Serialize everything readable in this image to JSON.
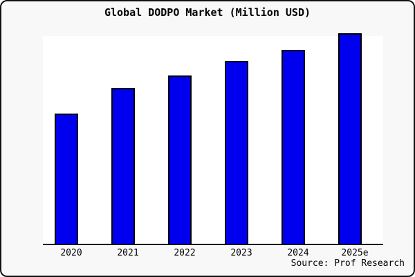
{
  "window": {
    "background": "#f8f8f8",
    "border_color": "#111111"
  },
  "chart_data": {
    "type": "bar",
    "title": "Global DODPO Market (Million USD)",
    "categories": [
      "2020",
      "2021",
      "2022",
      "2023",
      "2024",
      "2025e"
    ],
    "values": [
      62,
      74,
      80,
      87,
      92,
      100
    ],
    "values_estimated": true,
    "xlabel": "",
    "ylabel": "",
    "ylim": [
      0,
      100
    ],
    "grid": false,
    "legend": null,
    "y_axis_shown": false,
    "bar_color": "#0000ee",
    "bar_border_color": "#000000",
    "axis_color": "#000000",
    "plot_background": "#ffffff"
  },
  "source": {
    "label": "Source: Prof Research"
  }
}
